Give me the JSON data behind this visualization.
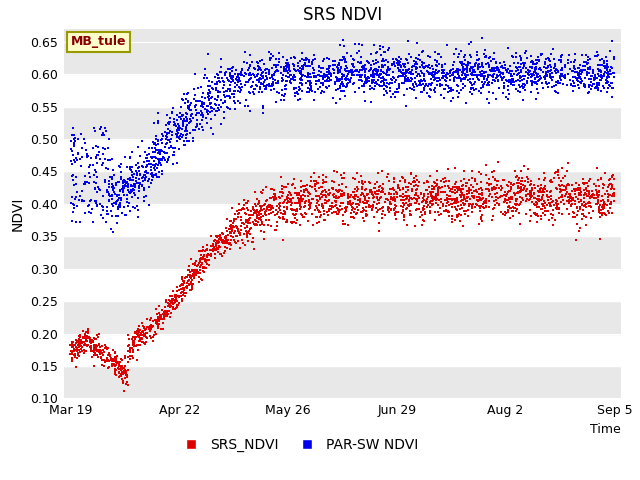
{
  "title": "SRS NDVI",
  "xlabel": "Time",
  "ylabel": "NDVI",
  "ylim": [
    0.1,
    0.67
  ],
  "xlim": [
    -2,
    172
  ],
  "plot_bg_color": "#e8e8e8",
  "fig_bg_color": "#ffffff",
  "srs_color": "#dd0000",
  "parsw_color": "#0000ee",
  "marker_size": 2.5,
  "annotation_text": "MB_tule",
  "annotation_facecolor": "#ffffcc",
  "annotation_edgecolor": "#999900",
  "tick_labels": [
    "Mar 19",
    "Apr 22",
    "May 26",
    "Jun 29",
    "Aug 2",
    "Sep 5"
  ],
  "tick_days": [
    0,
    34,
    68,
    102,
    136,
    170
  ],
  "y_ticks": [
    0.1,
    0.15,
    0.2,
    0.25,
    0.3,
    0.35,
    0.4,
    0.45,
    0.5,
    0.55,
    0.6,
    0.65
  ],
  "legend_labels": [
    "SRS_NDVI",
    "PAR-SW NDVI"
  ],
  "n_srs": 2500,
  "n_parsw": 2500,
  "seed": 123
}
